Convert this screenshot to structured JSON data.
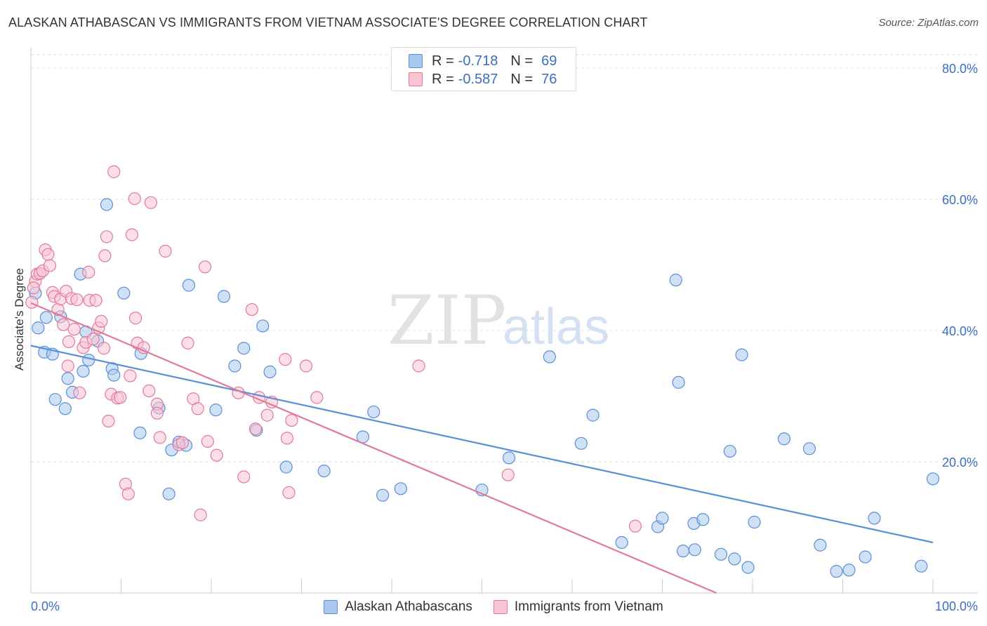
{
  "title": "ALASKAN ATHABASCAN VS IMMIGRANTS FROM VIETNAM ASSOCIATE'S DEGREE CORRELATION CHART",
  "source": "Source: ZipAtlas.com",
  "watermark": {
    "zip": "ZIP",
    "atlas": "atlas"
  },
  "legend_top": {
    "rows": [
      {
        "r_label": "R =",
        "r_value": "-0.718",
        "n_label": "N =",
        "n_value": "69",
        "color": "#aac8ee",
        "border": "#5a8fd6"
      },
      {
        "r_label": "R =",
        "r_value": "-0.587",
        "n_label": "N =",
        "n_value": "76",
        "color": "#f9c3d3",
        "border": "#e07a9a"
      }
    ]
  },
  "legend_bottom": [
    {
      "label": "Alaskan Athabascans",
      "color": "#aac8ee",
      "border": "#5a8fd6"
    },
    {
      "label": "Immigrants from Vietnam",
      "color": "#f9c3d3",
      "border": "#e07a9a"
    }
  ],
  "chart_data": {
    "type": "scatter",
    "title": "ALASKAN ATHABASCAN VS IMMIGRANTS FROM VIETNAM ASSOCIATE'S DEGREE CORRELATION CHART",
    "xlabel": "",
    "ylabel": "Associate's Degree",
    "xlim": [
      0,
      100
    ],
    "ylim": [
      0,
      80
    ],
    "x_tick_labels": [
      "0.0%",
      "100.0%"
    ],
    "y_ticks": [
      20,
      40,
      60,
      80
    ],
    "y_tick_labels": [
      "20.0%",
      "40.0%",
      "60.0%",
      "80.0%"
    ],
    "grid": true,
    "legend_placement": "top-center",
    "series": [
      {
        "name": "Alaskan Athabascans",
        "color": "#5a8fd6",
        "fill": "#aac8ee",
        "trend": {
          "x": [
            0,
            100
          ],
          "y": [
            37.7,
            7.7
          ]
        },
        "points": [
          [
            0.5,
            45.7
          ],
          [
            0.8,
            40.4
          ],
          [
            1.5,
            36.7
          ],
          [
            1.7,
            42.0
          ],
          [
            2.4,
            36.4
          ],
          [
            2.7,
            29.5
          ],
          [
            3.3,
            42.1
          ],
          [
            3.8,
            28.1
          ],
          [
            4.1,
            32.7
          ],
          [
            4.6,
            30.6
          ],
          [
            5.5,
            48.6
          ],
          [
            5.8,
            33.8
          ],
          [
            6.1,
            39.8
          ],
          [
            6.4,
            35.5
          ],
          [
            7.4,
            38.4
          ],
          [
            8.4,
            59.2
          ],
          [
            9.0,
            34.2
          ],
          [
            9.2,
            33.2
          ],
          [
            10.3,
            45.7
          ],
          [
            12.1,
            24.4
          ],
          [
            12.2,
            36.5
          ],
          [
            14.2,
            28.2
          ],
          [
            15.3,
            15.1
          ],
          [
            15.6,
            21.8
          ],
          [
            16.4,
            23.0
          ],
          [
            17.2,
            22.5
          ],
          [
            17.5,
            46.9
          ],
          [
            20.5,
            27.9
          ],
          [
            21.4,
            45.2
          ],
          [
            22.6,
            34.6
          ],
          [
            23.6,
            37.3
          ],
          [
            25.0,
            24.8
          ],
          [
            25.7,
            40.7
          ],
          [
            26.5,
            33.7
          ],
          [
            28.3,
            19.2
          ],
          [
            32.5,
            18.6
          ],
          [
            36.8,
            23.8
          ],
          [
            38.0,
            27.6
          ],
          [
            39.0,
            14.9
          ],
          [
            41.0,
            15.9
          ],
          [
            50.0,
            15.7
          ],
          [
            53.0,
            20.6
          ],
          [
            57.5,
            36.0
          ],
          [
            61.0,
            22.8
          ],
          [
            62.3,
            27.1
          ],
          [
            65.5,
            7.7
          ],
          [
            69.5,
            10.1
          ],
          [
            70.0,
            11.4
          ],
          [
            71.5,
            47.7
          ],
          [
            71.8,
            32.1
          ],
          [
            72.3,
            6.4
          ],
          [
            73.5,
            10.6
          ],
          [
            73.6,
            6.6
          ],
          [
            74.5,
            11.2
          ],
          [
            76.5,
            5.9
          ],
          [
            77.5,
            21.6
          ],
          [
            78.0,
            5.2
          ],
          [
            78.8,
            36.3
          ],
          [
            79.5,
            3.9
          ],
          [
            80.2,
            10.8
          ],
          [
            83.5,
            23.5
          ],
          [
            86.3,
            22.0
          ],
          [
            87.5,
            7.3
          ],
          [
            89.3,
            3.3
          ],
          [
            90.7,
            3.5
          ],
          [
            92.5,
            5.5
          ],
          [
            93.5,
            11.4
          ],
          [
            98.7,
            4.1
          ],
          [
            100.0,
            17.4
          ]
        ]
      },
      {
        "name": "Immigrants from Vietnam",
        "color": "#e07a9a",
        "fill": "#f9c3d3",
        "trend": {
          "x": [
            0,
            76
          ],
          "y": [
            44.2,
            0
          ]
        },
        "points": [
          [
            0.1,
            44.3
          ],
          [
            0.5,
            47.5
          ],
          [
            0.7,
            48.6
          ],
          [
            1.0,
            48.7
          ],
          [
            1.3,
            49.1
          ],
          [
            1.6,
            52.3
          ],
          [
            1.9,
            51.6
          ],
          [
            2.1,
            49.9
          ],
          [
            2.4,
            45.8
          ],
          [
            2.6,
            45.2
          ],
          [
            3.0,
            43.2
          ],
          [
            3.3,
            44.8
          ],
          [
            3.6,
            40.9
          ],
          [
            3.9,
            46.0
          ],
          [
            4.1,
            34.6
          ],
          [
            4.2,
            38.3
          ],
          [
            4.5,
            44.9
          ],
          [
            4.8,
            40.2
          ],
          [
            5.1,
            44.7
          ],
          [
            5.4,
            30.5
          ],
          [
            5.8,
            37.4
          ],
          [
            6.1,
            38.2
          ],
          [
            6.4,
            48.9
          ],
          [
            6.5,
            44.6
          ],
          [
            6.9,
            38.7
          ],
          [
            7.2,
            44.6
          ],
          [
            7.5,
            40.4
          ],
          [
            7.8,
            41.4
          ],
          [
            8.1,
            37.3
          ],
          [
            8.2,
            51.4
          ],
          [
            8.4,
            54.3
          ],
          [
            8.6,
            26.2
          ],
          [
            8.9,
            30.3
          ],
          [
            9.2,
            64.2
          ],
          [
            9.6,
            29.7
          ],
          [
            9.9,
            29.8
          ],
          [
            10.5,
            16.6
          ],
          [
            10.8,
            15.1
          ],
          [
            11.0,
            33.1
          ],
          [
            11.2,
            54.6
          ],
          [
            11.5,
            60.1
          ],
          [
            11.6,
            41.9
          ],
          [
            11.8,
            38.1
          ],
          [
            12.5,
            37.4
          ],
          [
            13.1,
            30.8
          ],
          [
            13.3,
            59.5
          ],
          [
            14.0,
            28.8
          ],
          [
            14.0,
            27.4
          ],
          [
            14.3,
            23.7
          ],
          [
            14.9,
            52.1
          ],
          [
            16.4,
            22.6
          ],
          [
            16.8,
            22.9
          ],
          [
            17.4,
            38.1
          ],
          [
            18.0,
            29.6
          ],
          [
            18.5,
            28.1
          ],
          [
            18.8,
            11.9
          ],
          [
            19.3,
            49.7
          ],
          [
            19.6,
            23.1
          ],
          [
            20.6,
            21.0
          ],
          [
            23.0,
            30.5
          ],
          [
            23.6,
            17.7
          ],
          [
            24.5,
            43.2
          ],
          [
            24.9,
            25.0
          ],
          [
            25.3,
            29.8
          ],
          [
            26.2,
            27.1
          ],
          [
            26.7,
            29.1
          ],
          [
            28.2,
            35.6
          ],
          [
            28.4,
            23.6
          ],
          [
            28.6,
            15.3
          ],
          [
            28.9,
            26.3
          ],
          [
            30.5,
            34.6
          ],
          [
            31.7,
            29.8
          ],
          [
            43.0,
            34.6
          ],
          [
            52.9,
            18.0
          ],
          [
            67.0,
            10.2
          ],
          [
            0.3,
            46.5
          ]
        ]
      }
    ]
  }
}
